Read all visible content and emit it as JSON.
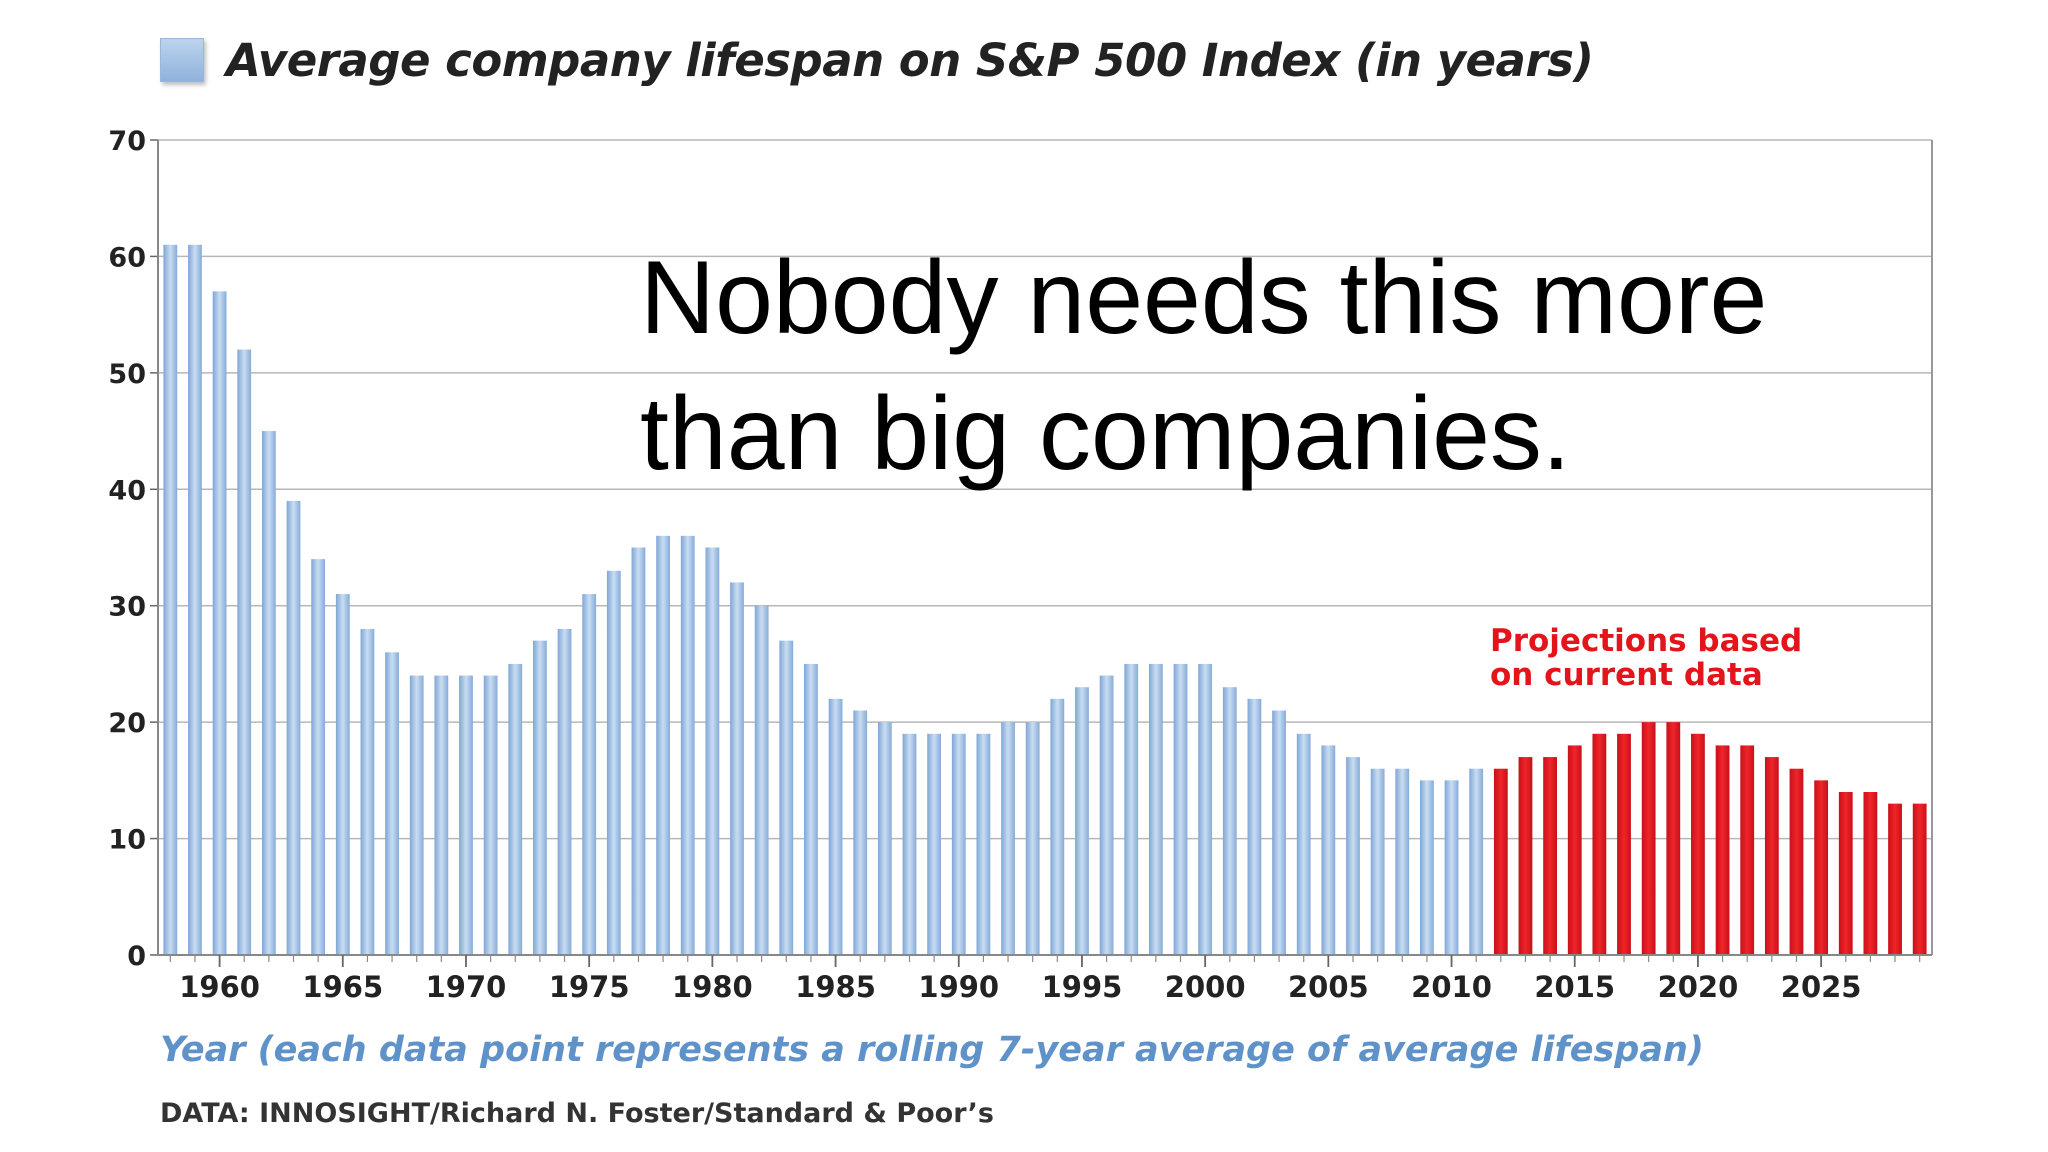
{
  "chart_data": {
    "type": "bar",
    "title": "Average company lifespan on S&P 500 Index (in years)",
    "xlabel": "Year (each data point represents a rolling 7-year average of average lifespan)",
    "source": "DATA: INNOSIGHT/Richard N. Foster/Standard & Poor’s",
    "ylim": [
      0,
      70
    ],
    "yticks": [
      "0",
      "10",
      "20",
      "30",
      "40",
      "50",
      "60",
      "70"
    ],
    "xticks": [
      "1960",
      "1965",
      "1970",
      "1975",
      "1980",
      "1985",
      "1990",
      "1995",
      "2000",
      "2005",
      "2010",
      "2015",
      "2020",
      "2025"
    ],
    "grid": true,
    "x": [
      1958,
      1959,
      1960,
      1961,
      1962,
      1963,
      1964,
      1965,
      1966,
      1967,
      1968,
      1969,
      1970,
      1971,
      1972,
      1973,
      1974,
      1975,
      1976,
      1977,
      1978,
      1979,
      1980,
      1981,
      1982,
      1983,
      1984,
      1985,
      1986,
      1987,
      1988,
      1989,
      1990,
      1991,
      1992,
      1993,
      1994,
      1995,
      1996,
      1997,
      1998,
      1999,
      2000,
      2001,
      2002,
      2003,
      2004,
      2005,
      2006,
      2007,
      2008,
      2009,
      2010,
      2011,
      2012,
      2013,
      2014,
      2015,
      2016,
      2017,
      2018,
      2019,
      2020,
      2021,
      2022,
      2023,
      2024,
      2025,
      2026,
      2027,
      2028,
      2029
    ],
    "series": [
      {
        "name": "Average company lifespan on S&P 500 Index (in years)",
        "color": "#9dbde2",
        "values": [
          61,
          61,
          57,
          52,
          45,
          39,
          34,
          31,
          28,
          26,
          24,
          24,
          24,
          24,
          25,
          27,
          28,
          31,
          33,
          35,
          36,
          36,
          35,
          32,
          30,
          27,
          25,
          22,
          21,
          20,
          19,
          19,
          19,
          19,
          20,
          20,
          22,
          23,
          24,
          25,
          25,
          25,
          25,
          23,
          22,
          21,
          19,
          18,
          17,
          16,
          16,
          15,
          15,
          16,
          null,
          null,
          null,
          null,
          null,
          null,
          null,
          null,
          null,
          null,
          null,
          null,
          null,
          null,
          null,
          null,
          null,
          null
        ]
      },
      {
        "name": "Projections based on current data",
        "color": "#e3151b",
        "values": [
          null,
          null,
          null,
          null,
          null,
          null,
          null,
          null,
          null,
          null,
          null,
          null,
          null,
          null,
          null,
          null,
          null,
          null,
          null,
          null,
          null,
          null,
          null,
          null,
          null,
          null,
          null,
          null,
          null,
          null,
          null,
          null,
          null,
          null,
          null,
          null,
          null,
          null,
          null,
          null,
          null,
          null,
          null,
          null,
          null,
          null,
          null,
          null,
          null,
          null,
          null,
          null,
          null,
          null,
          16,
          17,
          17,
          18,
          19,
          19,
          20,
          20,
          19,
          18,
          18,
          17,
          16,
          15,
          14,
          14,
          13,
          13
        ]
      }
    ],
    "annotation": "Projections based on current data"
  },
  "overlay_text": "Nobody needs this more than big companies.",
  "colors": {
    "historical": "#9dbde2",
    "projection": "#e3151b",
    "grid": "#b7b7b7",
    "xlabel": "#5f92c9"
  }
}
